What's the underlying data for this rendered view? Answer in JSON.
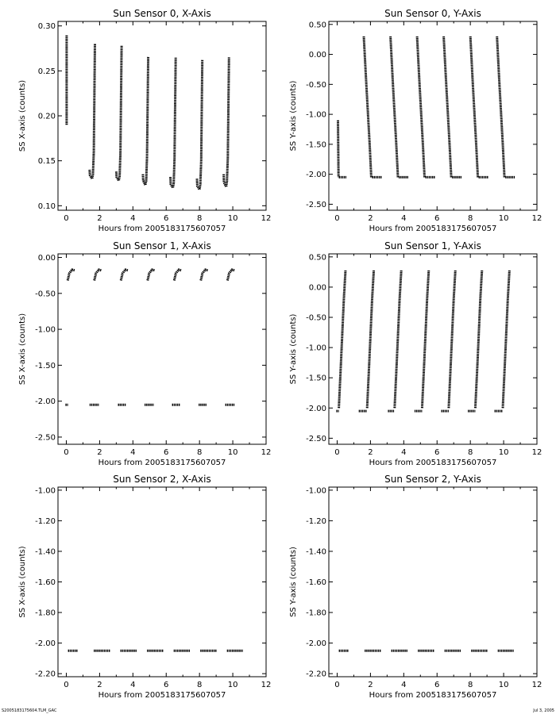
{
  "footer": {
    "left": "S2005183175604.TLM_GAC",
    "right": "Jul  3, 2005"
  },
  "chart_data": [
    {
      "type": "scatter",
      "title": "Sun Sensor 0, X-Axis",
      "xlabel": "Hours from 2005183175607057",
      "ylabel": "SS X-axis (counts)",
      "xlim": [
        -0.5,
        12
      ],
      "ylim": [
        0.095,
        0.305
      ],
      "xticks": [
        0,
        2,
        4,
        6,
        8,
        10,
        12
      ],
      "yticks": [
        0.1,
        0.15,
        0.2,
        0.25,
        0.3
      ],
      "ytick_decimals": 2,
      "series": [
        {
          "type": "line",
          "x": [
            0.02,
            0.02
          ],
          "y": [
            0.19,
            0.29
          ]
        },
        {
          "type": "curve",
          "x": [
            1.4,
            1.42,
            1.55,
            1.6,
            1.65,
            1.72
          ],
          "y": [
            0.14,
            0.134,
            0.13,
            0.135,
            0.16,
            0.28
          ]
        },
        {
          "type": "curve",
          "x": [
            3.0,
            3.02,
            3.15,
            3.2,
            3.25,
            3.32
          ],
          "y": [
            0.138,
            0.132,
            0.128,
            0.133,
            0.158,
            0.278
          ]
        },
        {
          "type": "curve",
          "x": [
            4.6,
            4.62,
            4.75,
            4.8,
            4.85,
            4.92
          ],
          "y": [
            0.135,
            0.128,
            0.123,
            0.128,
            0.155,
            0.266
          ]
        },
        {
          "type": "curve",
          "x": [
            6.25,
            6.27,
            6.4,
            6.45,
            6.5,
            6.57
          ],
          "y": [
            0.132,
            0.124,
            0.12,
            0.125,
            0.152,
            0.265
          ]
        },
        {
          "type": "curve",
          "x": [
            7.85,
            7.87,
            8.0,
            8.05,
            8.1,
            8.17
          ],
          "y": [
            0.13,
            0.122,
            0.118,
            0.124,
            0.15,
            0.262
          ]
        },
        {
          "type": "curve",
          "x": [
            9.45,
            9.47,
            9.6,
            9.65,
            9.7,
            9.77
          ],
          "y": [
            0.135,
            0.126,
            0.121,
            0.127,
            0.153,
            0.265
          ]
        }
      ]
    },
    {
      "type": "scatter",
      "title": "Sun Sensor 0, Y-Axis",
      "xlabel": "Hours from 2005183175607057",
      "ylabel": "SS Y-axis (counts)",
      "xlim": [
        -0.5,
        12
      ],
      "ylim": [
        -2.6,
        0.55
      ],
      "xticks": [
        0,
        2,
        4,
        6,
        8,
        10,
        12
      ],
      "yticks": [
        -2.5,
        -2.0,
        -1.5,
        -1.0,
        -0.5,
        0.0,
        0.5
      ],
      "ytick_decimals": 2,
      "series": [
        {
          "type": "line",
          "x": [
            0.05,
            0.08
          ],
          "y": [
            -1.1,
            -2.05
          ]
        },
        {
          "type": "line",
          "x": [
            0.1,
            0.55
          ],
          "y": [
            -2.05,
            -2.05
          ]
        },
        {
          "type": "curve",
          "x": [
            1.6,
            1.75,
            1.95,
            2.05
          ],
          "y": [
            0.3,
            -0.5,
            -1.5,
            -2.05
          ]
        },
        {
          "type": "line",
          "x": [
            2.1,
            2.7
          ],
          "y": [
            -2.05,
            -2.05
          ]
        },
        {
          "type": "curve",
          "x": [
            3.2,
            3.35,
            3.55,
            3.65
          ],
          "y": [
            0.3,
            -0.5,
            -1.5,
            -2.05
          ]
        },
        {
          "type": "line",
          "x": [
            3.7,
            4.3
          ],
          "y": [
            -2.05,
            -2.05
          ]
        },
        {
          "type": "curve",
          "x": [
            4.8,
            4.95,
            5.15,
            5.25
          ],
          "y": [
            0.3,
            -0.5,
            -1.5,
            -2.05
          ]
        },
        {
          "type": "line",
          "x": [
            5.3,
            5.9
          ],
          "y": [
            -2.05,
            -2.05
          ]
        },
        {
          "type": "curve",
          "x": [
            6.4,
            6.55,
            6.75,
            6.85
          ],
          "y": [
            0.3,
            -0.5,
            -1.5,
            -2.05
          ]
        },
        {
          "type": "line",
          "x": [
            6.9,
            7.5
          ],
          "y": [
            -2.05,
            -2.05
          ]
        },
        {
          "type": "curve",
          "x": [
            8.0,
            8.15,
            8.35,
            8.45
          ],
          "y": [
            0.3,
            -0.5,
            -1.5,
            -2.05
          ]
        },
        {
          "type": "line",
          "x": [
            8.5,
            9.1
          ],
          "y": [
            -2.05,
            -2.05
          ]
        },
        {
          "type": "curve",
          "x": [
            9.6,
            9.75,
            9.95,
            10.05
          ],
          "y": [
            0.3,
            -0.5,
            -1.5,
            -2.05
          ]
        },
        {
          "type": "line",
          "x": [
            10.1,
            10.7
          ],
          "y": [
            -2.05,
            -2.05
          ]
        }
      ]
    },
    {
      "type": "scatter",
      "title": "Sun Sensor 1, X-Axis",
      "xlabel": "Hours from 2005183175607057",
      "ylabel": "SS X-axis (counts)",
      "xlim": [
        -0.5,
        12
      ],
      "ylim": [
        -2.6,
        0.05
      ],
      "xticks": [
        0,
        2,
        4,
        6,
        8,
        10,
        12
      ],
      "yticks": [
        -2.5,
        -2.0,
        -1.5,
        -1.0,
        -0.5,
        0.0
      ],
      "ytick_decimals": 2,
      "series": [
        {
          "type": "curve",
          "x": [
            0.08,
            0.18,
            0.35,
            0.5
          ],
          "y": [
            -0.32,
            -0.22,
            -0.17,
            -0.18
          ]
        },
        {
          "type": "curve",
          "x": [
            1.68,
            1.78,
            1.95,
            2.1
          ],
          "y": [
            -0.32,
            -0.22,
            -0.17,
            -0.18
          ]
        },
        {
          "type": "curve",
          "x": [
            3.28,
            3.38,
            3.55,
            3.7
          ],
          "y": [
            -0.32,
            -0.22,
            -0.17,
            -0.18
          ]
        },
        {
          "type": "curve",
          "x": [
            4.88,
            4.98,
            5.15,
            5.3
          ],
          "y": [
            -0.32,
            -0.22,
            -0.17,
            -0.18
          ]
        },
        {
          "type": "curve",
          "x": [
            6.48,
            6.58,
            6.75,
            6.9
          ],
          "y": [
            -0.32,
            -0.22,
            -0.17,
            -0.18
          ]
        },
        {
          "type": "curve",
          "x": [
            8.08,
            8.18,
            8.35,
            8.5
          ],
          "y": [
            -0.32,
            -0.22,
            -0.17,
            -0.18
          ]
        },
        {
          "type": "curve",
          "x": [
            9.68,
            9.78,
            9.95,
            10.1
          ],
          "y": [
            -0.32,
            -0.22,
            -0.17,
            -0.18
          ]
        },
        {
          "type": "line",
          "x": [
            -0.05,
            0.1
          ],
          "y": [
            -2.05,
            -2.05
          ]
        },
        {
          "type": "line",
          "x": [
            1.4,
            1.95
          ],
          "y": [
            -2.05,
            -2.05
          ]
        },
        {
          "type": "line",
          "x": [
            3.1,
            3.6
          ],
          "y": [
            -2.05,
            -2.05
          ]
        },
        {
          "type": "line",
          "x": [
            4.7,
            5.25
          ],
          "y": [
            -2.05,
            -2.05
          ]
        },
        {
          "type": "line",
          "x": [
            6.35,
            6.85
          ],
          "y": [
            -2.05,
            -2.05
          ]
        },
        {
          "type": "line",
          "x": [
            7.95,
            8.45
          ],
          "y": [
            -2.05,
            -2.05
          ]
        },
        {
          "type": "line",
          "x": [
            9.55,
            10.1
          ],
          "y": [
            -2.05,
            -2.05
          ]
        }
      ]
    },
    {
      "type": "scatter",
      "title": "Sun Sensor 1, Y-Axis",
      "xlabel": "Hours from 2005183175607057",
      "ylabel": "SS Y-axis (counts)",
      "xlim": [
        -0.5,
        12
      ],
      "ylim": [
        -2.6,
        0.55
      ],
      "xticks": [
        0,
        2,
        4,
        6,
        8,
        10,
        12
      ],
      "yticks": [
        -2.5,
        -2.0,
        -1.5,
        -1.0,
        -0.5,
        0.0,
        0.5
      ],
      "ytick_decimals": 2,
      "series": [
        {
          "type": "line",
          "x": [
            -0.05,
            0.1
          ],
          "y": [
            -2.05,
            -2.05
          ]
        },
        {
          "type": "curve",
          "x": [
            0.1,
            0.22,
            0.4,
            0.5
          ],
          "y": [
            -2.0,
            -1.3,
            -0.2,
            0.28
          ]
        },
        {
          "type": "line",
          "x": [
            1.3,
            1.8
          ],
          "y": [
            -2.05,
            -2.05
          ]
        },
        {
          "type": "curve",
          "x": [
            1.8,
            1.92,
            2.1,
            2.2
          ],
          "y": [
            -2.0,
            -1.3,
            -0.2,
            0.28
          ]
        },
        {
          "type": "line",
          "x": [
            3.05,
            3.45
          ],
          "y": [
            -2.05,
            -2.05
          ]
        },
        {
          "type": "curve",
          "x": [
            3.45,
            3.57,
            3.75,
            3.85
          ],
          "y": [
            -2.0,
            -1.3,
            -0.2,
            0.28
          ]
        },
        {
          "type": "line",
          "x": [
            4.65,
            5.1
          ],
          "y": [
            -2.05,
            -2.05
          ]
        },
        {
          "type": "curve",
          "x": [
            5.1,
            5.22,
            5.4,
            5.5
          ],
          "y": [
            -2.0,
            -1.3,
            -0.2,
            0.28
          ]
        },
        {
          "type": "line",
          "x": [
            6.25,
            6.7
          ],
          "y": [
            -2.05,
            -2.05
          ]
        },
        {
          "type": "curve",
          "x": [
            6.7,
            6.82,
            7.0,
            7.1
          ],
          "y": [
            -2.0,
            -1.3,
            -0.2,
            0.28
          ]
        },
        {
          "type": "line",
          "x": [
            7.85,
            8.3
          ],
          "y": [
            -2.05,
            -2.05
          ]
        },
        {
          "type": "curve",
          "x": [
            8.3,
            8.42,
            8.6,
            8.7
          ],
          "y": [
            -2.0,
            -1.3,
            -0.2,
            0.28
          ]
        },
        {
          "type": "line",
          "x": [
            9.45,
            9.95
          ],
          "y": [
            -2.05,
            -2.05
          ]
        },
        {
          "type": "curve",
          "x": [
            9.95,
            10.07,
            10.25,
            10.35
          ],
          "y": [
            -2.0,
            -1.3,
            -0.2,
            0.28
          ]
        }
      ]
    },
    {
      "type": "scatter",
      "title": "Sun Sensor 2, X-Axis",
      "xlabel": "Hours from 2005183175607057",
      "ylabel": "SS X-axis (counts)",
      "xlim": [
        -0.5,
        12
      ],
      "ylim": [
        -2.22,
        -0.98
      ],
      "xticks": [
        0,
        2,
        4,
        6,
        8,
        10,
        12
      ],
      "yticks": [
        -2.2,
        -2.0,
        -1.8,
        -1.6,
        -1.4,
        -1.2,
        -1.0
      ],
      "ytick_decimals": 2,
      "series": [
        {
          "type": "line",
          "x": [
            0.1,
            0.7
          ],
          "y": [
            -2.05,
            -2.05
          ]
        },
        {
          "type": "line",
          "x": [
            1.65,
            2.65
          ],
          "y": [
            -2.05,
            -2.05
          ]
        },
        {
          "type": "line",
          "x": [
            3.25,
            4.25
          ],
          "y": [
            -2.05,
            -2.05
          ]
        },
        {
          "type": "line",
          "x": [
            4.85,
            5.85
          ],
          "y": [
            -2.05,
            -2.05
          ]
        },
        {
          "type": "line",
          "x": [
            6.45,
            7.45
          ],
          "y": [
            -2.05,
            -2.05
          ]
        },
        {
          "type": "line",
          "x": [
            8.05,
            9.05
          ],
          "y": [
            -2.05,
            -2.05
          ]
        },
        {
          "type": "line",
          "x": [
            9.65,
            10.6
          ],
          "y": [
            -2.05,
            -2.05
          ]
        }
      ]
    },
    {
      "type": "scatter",
      "title": "Sun Sensor 2, Y-Axis",
      "xlabel": "Hours from 2005183175607057",
      "ylabel": "SS Y-axis (counts)",
      "xlim": [
        -0.5,
        12
      ],
      "ylim": [
        -2.22,
        -0.98
      ],
      "xticks": [
        0,
        2,
        4,
        6,
        8,
        10,
        12
      ],
      "yticks": [
        -2.2,
        -2.0,
        -1.8,
        -1.6,
        -1.4,
        -1.2,
        -1.0
      ],
      "ytick_decimals": 2,
      "series": [
        {
          "type": "line",
          "x": [
            0.1,
            0.7
          ],
          "y": [
            -2.05,
            -2.05
          ]
        },
        {
          "type": "line",
          "x": [
            1.65,
            2.65
          ],
          "y": [
            -2.05,
            -2.05
          ]
        },
        {
          "type": "line",
          "x": [
            3.25,
            4.25
          ],
          "y": [
            -2.05,
            -2.05
          ]
        },
        {
          "type": "line",
          "x": [
            4.85,
            5.85
          ],
          "y": [
            -2.05,
            -2.05
          ]
        },
        {
          "type": "line",
          "x": [
            6.45,
            7.45
          ],
          "y": [
            -2.05,
            -2.05
          ]
        },
        {
          "type": "line",
          "x": [
            8.05,
            9.05
          ],
          "y": [
            -2.05,
            -2.05
          ]
        },
        {
          "type": "line",
          "x": [
            9.65,
            10.6
          ],
          "y": [
            -2.05,
            -2.05
          ]
        }
      ]
    }
  ]
}
